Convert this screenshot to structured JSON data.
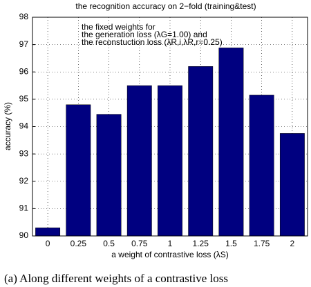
{
  "chart_data": {
    "type": "bar",
    "title": "the recognition accuracy on 2−fold (training&test)",
    "annotation": [
      "the fixed weights for",
      "the generation loss (λG=1.00) and",
      "the reconstuction loss (λR,i,λR,r=0.25)"
    ],
    "xlabel": "a weight of contrastive loss (λS)",
    "ylabel": "accuracy (%)",
    "caption": "(a) Along different weights of a contrastive loss",
    "categories": [
      "0",
      "0.25",
      "0.5",
      "0.75",
      "1",
      "1.25",
      "1.5",
      "1.75",
      "2"
    ],
    "values": [
      90.3,
      94.8,
      94.45,
      95.5,
      95.5,
      96.2,
      96.88,
      95.15,
      93.75
    ],
    "color": "#000080",
    "ylim": [
      90,
      98
    ],
    "yticks": [
      90,
      91,
      92,
      93,
      94,
      95,
      96,
      97,
      98
    ],
    "grid": true
  }
}
